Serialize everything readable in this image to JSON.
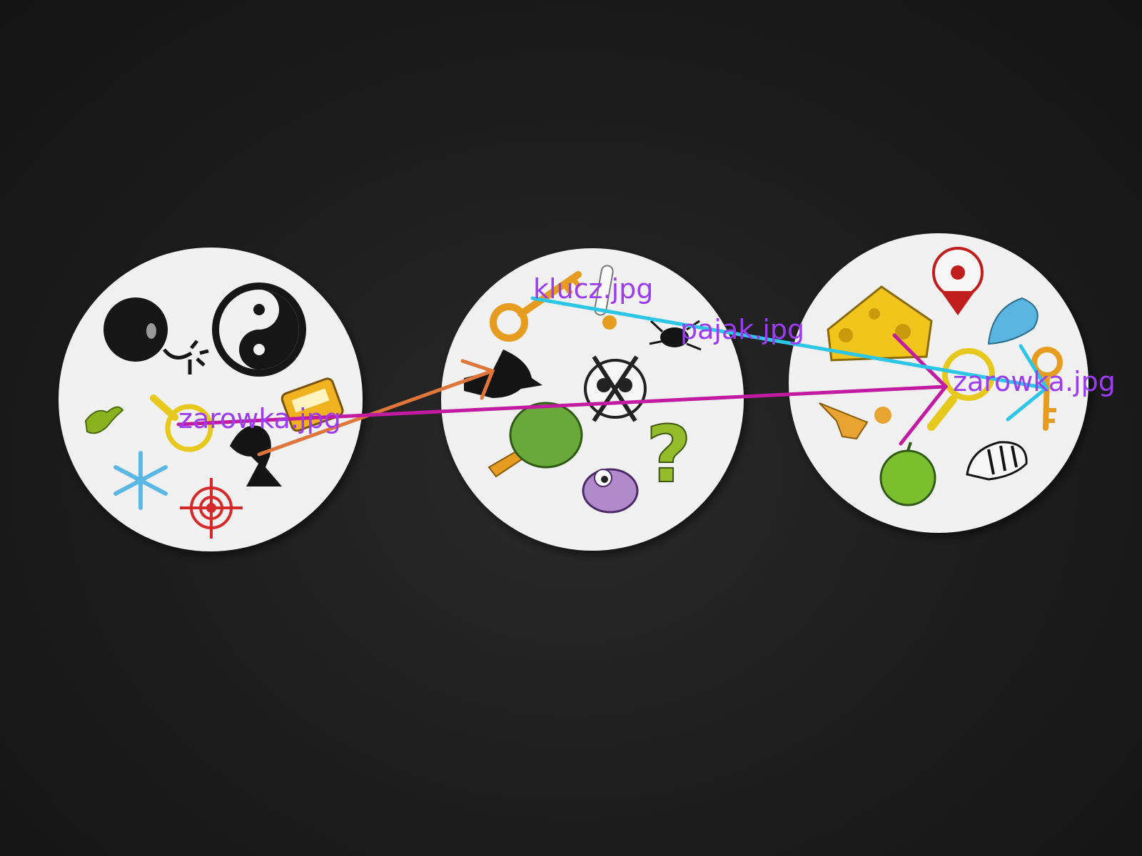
{
  "labels": {
    "left_card": "zarowka.jpg",
    "middle_card_top": "klucz.jpg",
    "middle_card_right": "pajak.jpg",
    "right_card": "zarowka.jpg"
  },
  "colors": {
    "background": "#1c1c1c",
    "card": "#f2f2f2",
    "label": "#9b3cf0",
    "arrow_orange": "#e0763a",
    "arrow_magenta": "#c21aa0",
    "arrow_cyan": "#2cc6e6"
  },
  "cards": [
    {
      "name": "left-card",
      "symbols": [
        "bomb",
        "yin-yang",
        "sparkle",
        "lightbulb",
        "taxi",
        "dinosaur",
        "knight",
        "snowflake",
        "target"
      ]
    },
    {
      "name": "middle-card",
      "symbols": [
        "key",
        "thermometer",
        "spider",
        "bird-head",
        "skull-crossbones",
        "tree",
        "question-mark",
        "purple-bird"
      ]
    },
    {
      "name": "right-card",
      "symbols": [
        "clown",
        "cheese",
        "water-drop",
        "lightbulb",
        "key",
        "gingerbread-man",
        "apple",
        "zebra"
      ]
    }
  ]
}
